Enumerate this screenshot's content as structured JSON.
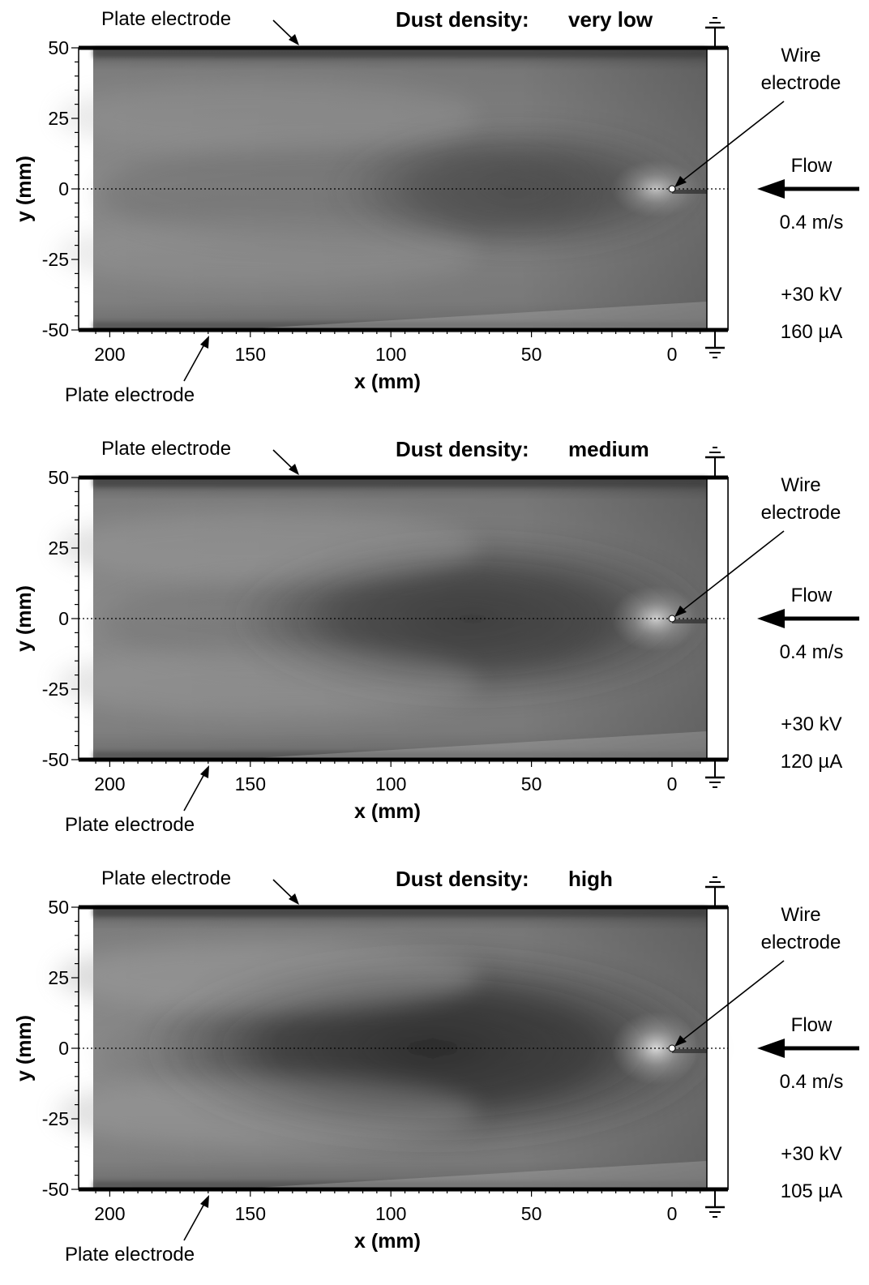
{
  "colors": {
    "background": "#ffffff",
    "ink": "#000000",
    "field_light": "#8f8f8f",
    "field_mid": "#6a6a6a",
    "field_dark": "#2a2a2a"
  },
  "panels": [
    {
      "dust_prefix": "Dust density:",
      "dust_value": "very low",
      "darkness": 0.35,
      "plate_top_label": "Plate electrode",
      "plate_bottom_label": "Plate electrode",
      "wire_label_1": "Wire",
      "wire_label_2": "electrode",
      "flow_label": "Flow",
      "velocity": "0.4 m/s",
      "voltage": "+30 kV",
      "current": "160 µA",
      "xlabel": "x (mm)",
      "ylabel": "y (mm)",
      "x_ticks": [
        "200",
        "150",
        "100",
        "50",
        "0"
      ],
      "y_ticks": [
        "50",
        "25",
        "0",
        "-25",
        "-50"
      ]
    },
    {
      "dust_prefix": "Dust density:",
      "dust_value": "medium",
      "darkness": 0.7,
      "plate_top_label": "Plate electrode",
      "plate_bottom_label": "Plate electrode",
      "wire_label_1": "Wire",
      "wire_label_2": "electrode",
      "flow_label": "Flow",
      "velocity": "0.4 m/s",
      "voltage": "+30 kV",
      "current": "120 µA",
      "xlabel": "x (mm)",
      "ylabel": "y (mm)",
      "x_ticks": [
        "200",
        "150",
        "100",
        "50",
        "0"
      ],
      "y_ticks": [
        "50",
        "25",
        "0",
        "-25",
        "-50"
      ]
    },
    {
      "dust_prefix": "Dust density:",
      "dust_value": "high",
      "darkness": 1.0,
      "plate_top_label": "Plate electrode",
      "plate_bottom_label": "Plate electrode",
      "wire_label_1": "Wire",
      "wire_label_2": "electrode",
      "flow_label": "Flow",
      "velocity": "0.4 m/s",
      "voltage": "+30 kV",
      "current": "105 µA",
      "xlabel": "x (mm)",
      "ylabel": "y (mm)",
      "x_ticks": [
        "200",
        "150",
        "100",
        "50",
        "0"
      ],
      "y_ticks": [
        "50",
        "25",
        "0",
        "-25",
        "-50"
      ]
    }
  ]
}
